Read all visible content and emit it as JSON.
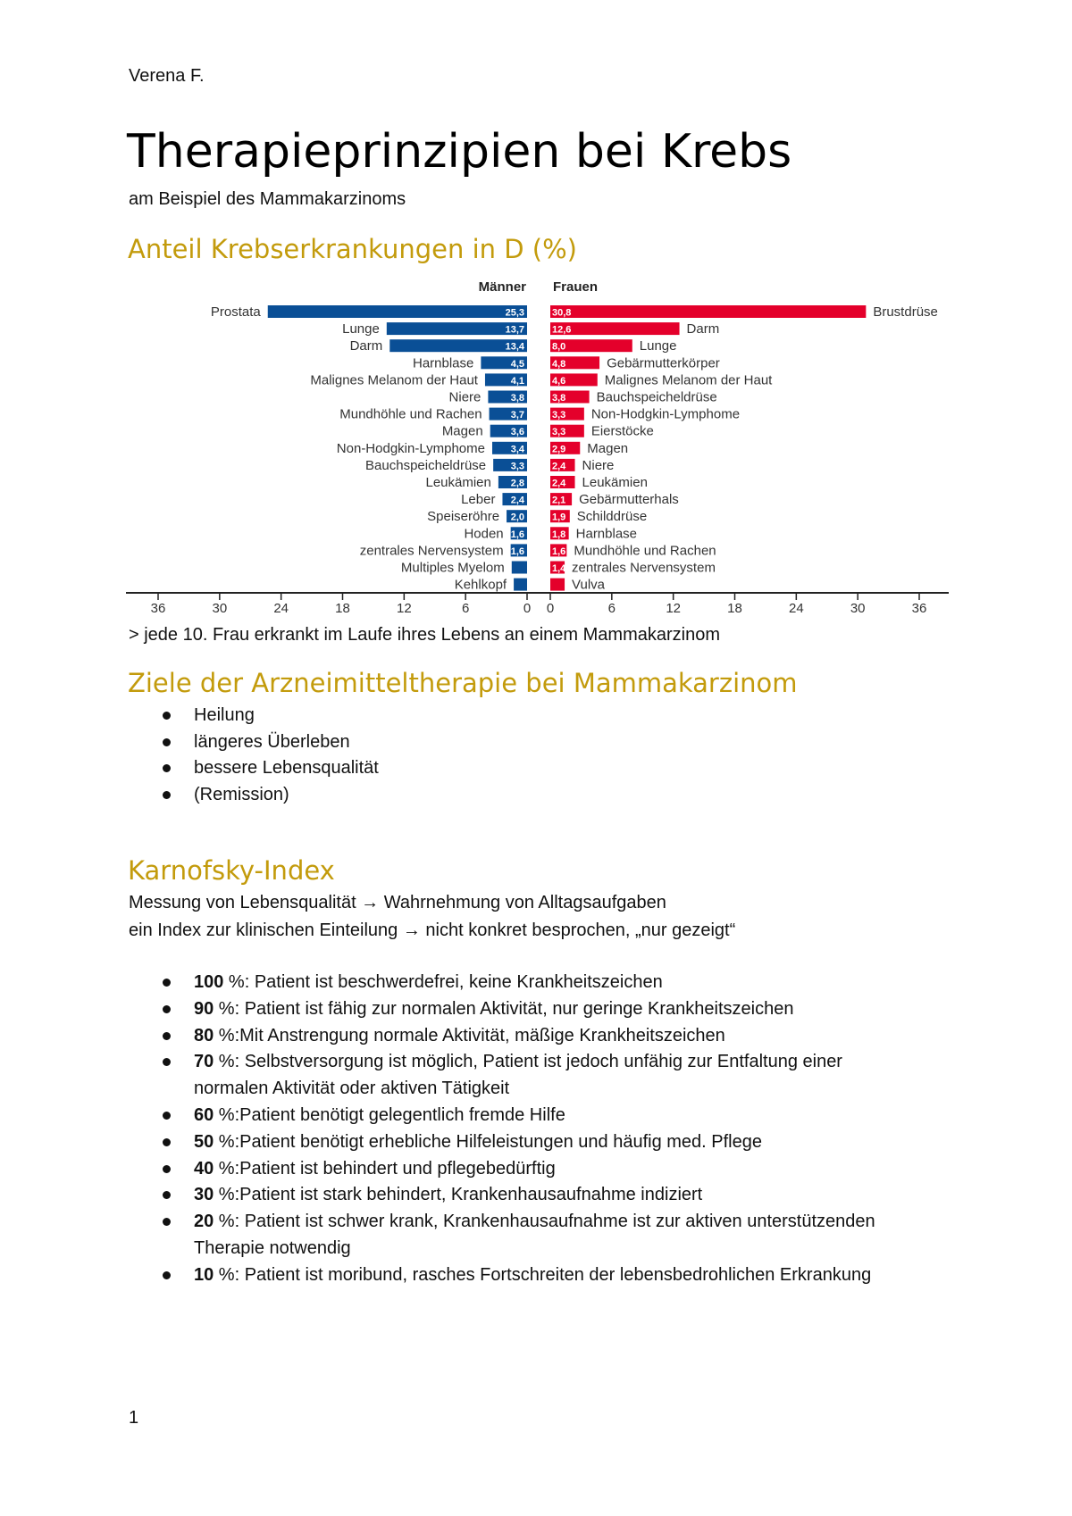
{
  "header": {
    "author": "Verena F."
  },
  "title": "Therapieprinzipien bei Krebs",
  "subtitle": "am Beispiel des Mammakarzinoms",
  "section1": {
    "heading": "Anteil Krebserkrankungen in D (%)",
    "note": "> jede 10. Frau erkrankt im Laufe ihres Lebens an einem Mammakarzinom"
  },
  "chart_data": {
    "type": "bar",
    "orientation": "horizontal",
    "layout": "back-to-back",
    "colors": {
      "men": "#0a4f96",
      "women": "#e4002b"
    },
    "xlim": [
      0,
      36
    ],
    "ticks": [
      "36",
      "30",
      "24",
      "18",
      "12",
      "6",
      "0",
      "0",
      "6",
      "12",
      "18",
      "24",
      "30",
      "36"
    ],
    "series": [
      {
        "name": "Männer",
        "categories": [
          "Prostata",
          "Lunge",
          "Darm",
          "Harnblase",
          "Malignes Melanom der Haut",
          "Niere",
          "Mundhöhle und Rachen",
          "Magen",
          "Non-Hodgkin-Lymphome",
          "Bauchspeicheldrüse",
          "Leukämien",
          "Leber",
          "Speiseröhre",
          "Hoden",
          "zentrales Nervensystem",
          "Multiples Myelom",
          "Kehlkopf"
        ],
        "values": [
          25.3,
          13.7,
          13.4,
          4.5,
          4.1,
          3.8,
          3.7,
          3.6,
          3.4,
          3.3,
          2.8,
          2.4,
          2.0,
          1.6,
          1.6,
          1.5,
          1.3
        ],
        "labels": [
          "25,3",
          "13,7",
          "13,4",
          "4,5",
          "4,1",
          "3,8",
          "3,7",
          "3,6",
          "3,4",
          "3,3",
          "2,8",
          "2,4",
          "2,0",
          "1,6",
          "1,6",
          "",
          ""
        ]
      },
      {
        "name": "Frauen",
        "categories": [
          "Brustdrüse",
          "Darm",
          "Lunge",
          "Gebärmutterkörper",
          "Malignes Melanom der Haut",
          "Bauchspeicheldrüse",
          "Non-Hodgkin-Lymphome",
          "Eierstöcke",
          "Magen",
          "Niere",
          "Leukämien",
          "Gebärmutterhals",
          "Schilddrüse",
          "Harnblase",
          "Mundhöhle und Rachen",
          "zentrales Nervensystem",
          "Vulva"
        ],
        "values": [
          30.8,
          12.6,
          8.0,
          4.8,
          4.6,
          3.8,
          3.3,
          3.3,
          2.9,
          2.4,
          2.4,
          2.1,
          1.9,
          1.8,
          1.6,
          1.4,
          1.4
        ],
        "labels": [
          "30,8",
          "12,6",
          "8,0",
          "4,8",
          "4,6",
          "3,8",
          "3,3",
          "3,3",
          "2,9",
          "2,4",
          "2,4",
          "2,1",
          "1,9",
          "1,8",
          "1,6",
          "1,4",
          ""
        ]
      }
    ]
  },
  "section2": {
    "heading": "Ziele der Arzneimitteltherapie bei Mammakarzinom",
    "items": [
      "Heilung",
      "längeres Überleben",
      "bessere Lebensqualität",
      "(Remission)"
    ]
  },
  "section3": {
    "heading": "Karnofsky-Index",
    "line1": "Messung von Lebensqualität → Wahrnehmung von Alltagsaufgaben",
    "line2": "ein Index zur klinischen Einteilung → nicht konkret besprochen, „nur gezeigt“",
    "items": [
      {
        "num": "100",
        "text": " %: Patient ist beschwerdefrei, keine Krankheitszeichen"
      },
      {
        "num": "90",
        "text": " %: Patient ist fähig zur normalen Aktivität, nur geringe Krankheitszeichen"
      },
      {
        "num": "80",
        "text": " %:Mit Anstrengung normale Aktivität, mäßige Krankheitszeichen"
      },
      {
        "num": "70",
        "text": " %: Selbstversorgung ist möglich, Patient ist jedoch unfähig zur Entfaltung einer",
        "cont": "normalen Aktivität oder aktiven Tätigkeit"
      },
      {
        "num": "60",
        "text": " %:Patient benötigt gelegentlich fremde Hilfe"
      },
      {
        "num": "50",
        "text": " %:Patient benötigt erhebliche Hilfeleistungen und häufig med. Pflege"
      },
      {
        "num": "40",
        "text": " %:Patient ist behindert und pflegebedürftig"
      },
      {
        "num": "30",
        "text": " %:Patient ist stark behindert, Krankenhausaufnahme indiziert"
      },
      {
        "num": "20",
        "text": " %: Patient ist schwer krank, Krankenhausaufnahme ist zur aktiven unterstützenden",
        "cont": "Therapie notwendig"
      },
      {
        "num": "10",
        "text": " %: Patient ist moribund, rasches Fortschreiten der lebensbedrohlichen Erkrankung"
      }
    ]
  },
  "footer": {
    "page_number": "1"
  }
}
